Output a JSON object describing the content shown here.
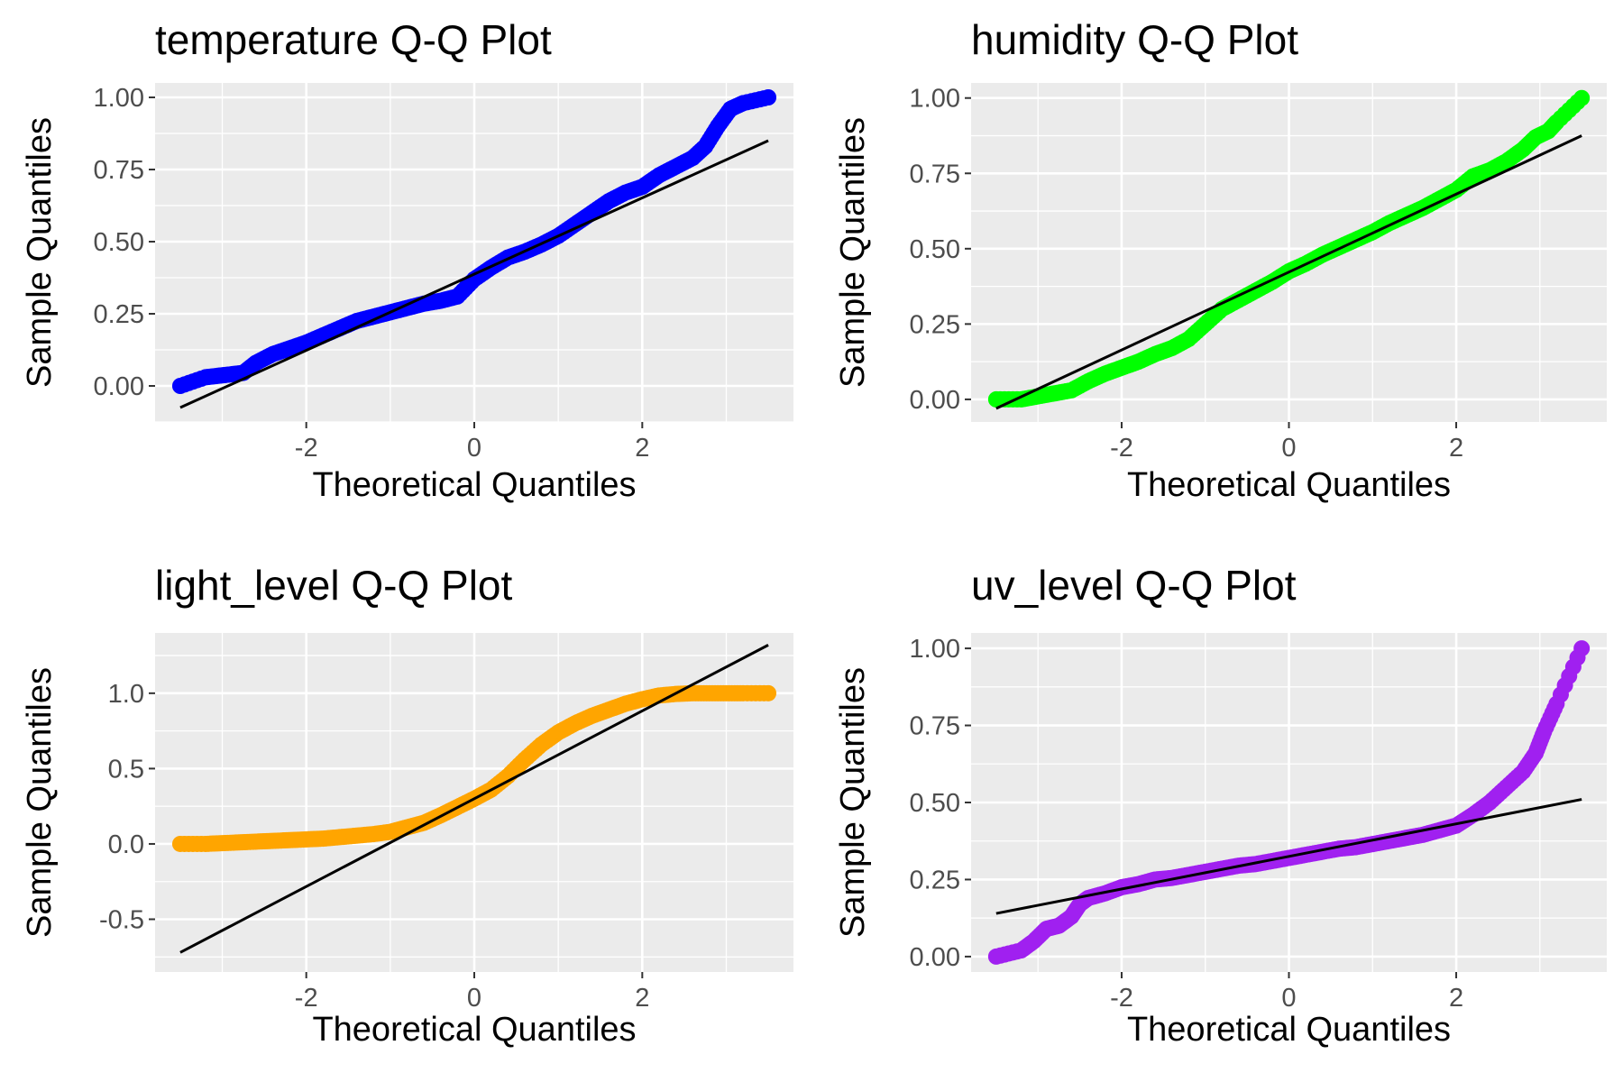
{
  "chart_data": [
    {
      "type": "scatter",
      "subtype": "qq",
      "title": "temperature Q-Q Plot",
      "xlabel": "Theoretical Quantiles",
      "ylabel": "Sample Quantiles",
      "color": "#0000ff",
      "xlim": [
        -3.8,
        3.8
      ],
      "ylim": [
        -0.125,
        1.05
      ],
      "xticks": [
        -2,
        0,
        2
      ],
      "xtick_labels": [
        "-2",
        "0",
        "2"
      ],
      "yticks": [
        0,
        0.25,
        0.5,
        0.75,
        1.0
      ],
      "ytick_labels": [
        "0.00",
        "0.25",
        "0.50",
        "0.75",
        "1.00"
      ],
      "grid": true,
      "reference_line": [
        [
          -3.5,
          -0.075
        ],
        [
          3.5,
          0.85
        ]
      ],
      "points": [
        [
          -3.5,
          0.0
        ],
        [
          -3.2,
          0.03
        ],
        [
          -3.05,
          0.035
        ],
        [
          -2.9,
          0.04
        ],
        [
          -2.75,
          0.045
        ],
        [
          -2.6,
          0.08
        ],
        [
          -2.4,
          0.11
        ],
        [
          -2.2,
          0.13
        ],
        [
          -2.0,
          0.15
        ],
        [
          -1.8,
          0.175
        ],
        [
          -1.6,
          0.2
        ],
        [
          -1.4,
          0.225
        ],
        [
          -1.2,
          0.24
        ],
        [
          -1.0,
          0.255
        ],
        [
          -0.8,
          0.27
        ],
        [
          -0.6,
          0.285
        ],
        [
          -0.4,
          0.295
        ],
        [
          -0.2,
          0.31
        ],
        [
          0.0,
          0.37
        ],
        [
          0.2,
          0.41
        ],
        [
          0.4,
          0.445
        ],
        [
          0.6,
          0.465
        ],
        [
          0.8,
          0.49
        ],
        [
          1.0,
          0.52
        ],
        [
          1.2,
          0.56
        ],
        [
          1.4,
          0.6
        ],
        [
          1.6,
          0.64
        ],
        [
          1.8,
          0.67
        ],
        [
          2.0,
          0.69
        ],
        [
          2.2,
          0.73
        ],
        [
          2.4,
          0.76
        ],
        [
          2.6,
          0.79
        ],
        [
          2.75,
          0.83
        ],
        [
          2.9,
          0.9
        ],
        [
          3.05,
          0.96
        ],
        [
          3.2,
          0.98
        ],
        [
          3.5,
          1.0
        ]
      ]
    },
    {
      "type": "scatter",
      "subtype": "qq",
      "title": "humidity Q-Q Plot",
      "xlabel": "Theoretical Quantiles",
      "ylabel": "Sample Quantiles",
      "color": "#00ff00",
      "xlim": [
        -3.8,
        3.8
      ],
      "ylim": [
        -0.075,
        1.05
      ],
      "xticks": [
        -2,
        0,
        2
      ],
      "xtick_labels": [
        "-2",
        "0",
        "2"
      ],
      "yticks": [
        0,
        0.25,
        0.5,
        0.75,
        1.0
      ],
      "ytick_labels": [
        "0.00",
        "0.25",
        "0.50",
        "0.75",
        "1.00"
      ],
      "grid": true,
      "reference_line": [
        [
          -3.5,
          -0.03
        ],
        [
          3.5,
          0.875
        ]
      ],
      "points": [
        [
          -3.5,
          0.0
        ],
        [
          -3.2,
          0.0
        ],
        [
          -3.0,
          0.01
        ],
        [
          -2.8,
          0.02
        ],
        [
          -2.6,
          0.03
        ],
        [
          -2.4,
          0.06
        ],
        [
          -2.2,
          0.085
        ],
        [
          -2.0,
          0.105
        ],
        [
          -1.8,
          0.125
        ],
        [
          -1.6,
          0.15
        ],
        [
          -1.4,
          0.17
        ],
        [
          -1.2,
          0.2
        ],
        [
          -1.0,
          0.25
        ],
        [
          -0.8,
          0.3
        ],
        [
          -0.6,
          0.33
        ],
        [
          -0.4,
          0.36
        ],
        [
          -0.2,
          0.39
        ],
        [
          0.0,
          0.425
        ],
        [
          0.2,
          0.45
        ],
        [
          0.4,
          0.48
        ],
        [
          0.6,
          0.505
        ],
        [
          0.8,
          0.53
        ],
        [
          1.0,
          0.555
        ],
        [
          1.2,
          0.585
        ],
        [
          1.4,
          0.61
        ],
        [
          1.6,
          0.635
        ],
        [
          1.8,
          0.665
        ],
        [
          2.0,
          0.695
        ],
        [
          2.2,
          0.74
        ],
        [
          2.4,
          0.76
        ],
        [
          2.6,
          0.79
        ],
        [
          2.8,
          0.83
        ],
        [
          2.95,
          0.87
        ],
        [
          3.1,
          0.89
        ],
        [
          3.2,
          0.92
        ],
        [
          3.5,
          1.0
        ]
      ]
    },
    {
      "type": "scatter",
      "subtype": "qq",
      "title": "light_level Q-Q Plot",
      "xlabel": "Theoretical Quantiles",
      "ylabel": "Sample Quantiles",
      "color": "#ffa500",
      "xlim": [
        -3.8,
        3.8
      ],
      "ylim": [
        -0.85,
        1.4
      ],
      "xticks": [
        -2,
        0,
        2
      ],
      "xtick_labels": [
        "-2",
        "0",
        "2"
      ],
      "yticks": [
        -0.5,
        0,
        0.5,
        1.0
      ],
      "ytick_labels": [
        "-0.5",
        "0.0",
        "0.5",
        "1.0"
      ],
      "grid": true,
      "reference_line": [
        [
          -3.5,
          -0.72
        ],
        [
          3.5,
          1.32
        ]
      ],
      "points": [
        [
          -3.5,
          0.0
        ],
        [
          -3.2,
          0.0
        ],
        [
          -3.0,
          0.005
        ],
        [
          -2.8,
          0.01
        ],
        [
          -2.6,
          0.015
        ],
        [
          -2.4,
          0.02
        ],
        [
          -2.2,
          0.025
        ],
        [
          -2.0,
          0.03
        ],
        [
          -1.8,
          0.035
        ],
        [
          -1.6,
          0.045
        ],
        [
          -1.4,
          0.055
        ],
        [
          -1.2,
          0.065
        ],
        [
          -1.0,
          0.08
        ],
        [
          -0.8,
          0.11
        ],
        [
          -0.6,
          0.14
        ],
        [
          -0.4,
          0.19
        ],
        [
          -0.2,
          0.245
        ],
        [
          0.0,
          0.3
        ],
        [
          0.2,
          0.36
        ],
        [
          0.4,
          0.45
        ],
        [
          0.6,
          0.56
        ],
        [
          0.8,
          0.66
        ],
        [
          1.0,
          0.74
        ],
        [
          1.2,
          0.8
        ],
        [
          1.4,
          0.85
        ],
        [
          1.6,
          0.89
        ],
        [
          1.8,
          0.93
        ],
        [
          2.0,
          0.96
        ],
        [
          2.2,
          0.985
        ],
        [
          2.4,
          0.995
        ],
        [
          2.6,
          1.0
        ],
        [
          2.8,
          1.0
        ],
        [
          3.0,
          1.0
        ],
        [
          3.2,
          1.0
        ],
        [
          3.5,
          1.0
        ]
      ]
    },
    {
      "type": "scatter",
      "subtype": "qq",
      "title": "uv_level Q-Q Plot",
      "xlabel": "Theoretical Quantiles",
      "ylabel": "Sample Quantiles",
      "color": "#a020f0",
      "xlim": [
        -3.8,
        3.8
      ],
      "ylim": [
        -0.05,
        1.05
      ],
      "xticks": [
        -2,
        0,
        2
      ],
      "xtick_labels": [
        "-2",
        "0",
        "2"
      ],
      "yticks": [
        0,
        0.25,
        0.5,
        0.75,
        1.0
      ],
      "ytick_labels": [
        "0.00",
        "0.25",
        "0.50",
        "0.75",
        "1.00"
      ],
      "grid": true,
      "reference_line": [
        [
          -3.5,
          0.14
        ],
        [
          3.5,
          0.51
        ]
      ],
      "points": [
        [
          -3.5,
          0.0
        ],
        [
          -3.2,
          0.02
        ],
        [
          -3.05,
          0.05
        ],
        [
          -2.9,
          0.09
        ],
        [
          -2.75,
          0.1
        ],
        [
          -2.6,
          0.13
        ],
        [
          -2.5,
          0.17
        ],
        [
          -2.4,
          0.19
        ],
        [
          -2.2,
          0.205
        ],
        [
          -2.0,
          0.225
        ],
        [
          -1.8,
          0.235
        ],
        [
          -1.6,
          0.25
        ],
        [
          -1.4,
          0.255
        ],
        [
          -1.2,
          0.265
        ],
        [
          -1.0,
          0.275
        ],
        [
          -0.8,
          0.285
        ],
        [
          -0.6,
          0.295
        ],
        [
          -0.4,
          0.3
        ],
        [
          -0.2,
          0.31
        ],
        [
          0.0,
          0.32
        ],
        [
          0.2,
          0.33
        ],
        [
          0.4,
          0.34
        ],
        [
          0.6,
          0.35
        ],
        [
          0.8,
          0.355
        ],
        [
          1.0,
          0.365
        ],
        [
          1.2,
          0.375
        ],
        [
          1.4,
          0.385
        ],
        [
          1.6,
          0.395
        ],
        [
          1.8,
          0.41
        ],
        [
          2.0,
          0.425
        ],
        [
          2.2,
          0.46
        ],
        [
          2.4,
          0.5
        ],
        [
          2.6,
          0.55
        ],
        [
          2.8,
          0.6
        ],
        [
          2.95,
          0.66
        ],
        [
          3.05,
          0.73
        ],
        [
          3.2,
          0.82
        ],
        [
          3.5,
          1.0
        ]
      ]
    }
  ]
}
